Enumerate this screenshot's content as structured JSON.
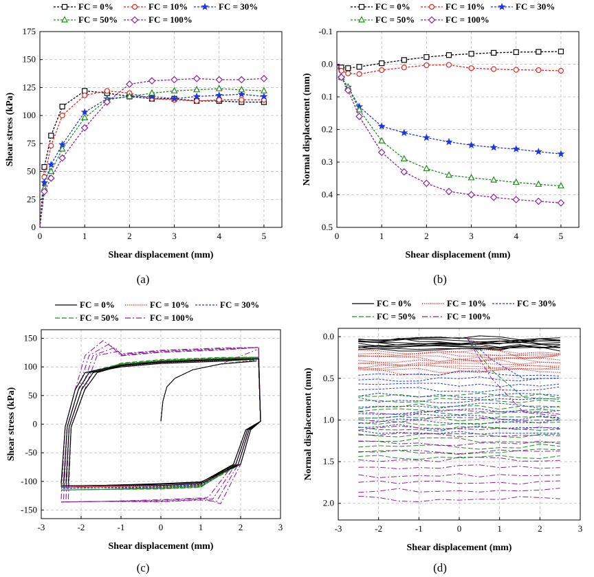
{
  "series_style": [
    {
      "name": "FC = 0%",
      "color": "#000000",
      "marker": "square"
    },
    {
      "name": "FC = 10%",
      "color": "#e8231c",
      "marker": "circle"
    },
    {
      "name": "FC = 30%",
      "color": "#1f35e0",
      "marker": "star"
    },
    {
      "name": "FC = 50%",
      "color": "#1e8a1e",
      "marker": "triangle"
    },
    {
      "name": "FC = 100%",
      "color": "#8b1f9a",
      "marker": "diamond"
    }
  ],
  "chart_data": [
    {
      "id": "a",
      "type": "line",
      "caption": "(a)",
      "title": "",
      "xlabel": "Shear displacement (mm)",
      "ylabel": "Shear stress (kPa)",
      "xlim": [
        0,
        5.4
      ],
      "ylim": [
        0,
        175
      ],
      "xticks": [
        0,
        1,
        2,
        3,
        4,
        5
      ],
      "yticks": [
        0,
        25,
        50,
        75,
        100,
        125,
        150,
        175
      ],
      "grid": true,
      "legend": [
        "FC = 0%",
        "FC = 10%",
        "FC = 30%",
        "FC = 50%",
        "FC = 100%"
      ],
      "x": [
        0,
        0.1,
        0.25,
        0.5,
        1,
        1.5,
        2,
        2.5,
        3,
        3.5,
        4,
        4.5,
        5
      ],
      "series": [
        {
          "name": "FC = 0%",
          "values": [
            0,
            54,
            82,
            108,
            122,
            120,
            117,
            115,
            115,
            113,
            113,
            112,
            112
          ]
        },
        {
          "name": "FC = 10%",
          "values": [
            0,
            45,
            73,
            100,
            118,
            122,
            120,
            115,
            114,
            113,
            114,
            114,
            114
          ]
        },
        {
          "name": "FC = 30%",
          "values": [
            0,
            40,
            56,
            74,
            103,
            115,
            117,
            117,
            115,
            117,
            118,
            119,
            117
          ]
        },
        {
          "name": "FC = 50%",
          "values": [
            0,
            35,
            50,
            70,
            98,
            114,
            117,
            120,
            122,
            123,
            124,
            123,
            122
          ]
        },
        {
          "name": "FC = 100%",
          "values": [
            0,
            32,
            44,
            62,
            89,
            112,
            128,
            131,
            132,
            133,
            132,
            132,
            133
          ]
        }
      ]
    },
    {
      "id": "b",
      "type": "line",
      "caption": "(b)",
      "title": "",
      "xlabel": "Shear displacement (mm)",
      "ylabel": "Normal displacement (mm)",
      "xlim": [
        0,
        5.4
      ],
      "ylim": [
        -0.1,
        0.5
      ],
      "yinverted": true,
      "xticks": [
        0,
        1,
        2,
        3,
        4,
        5
      ],
      "yticks": [
        -0.1,
        0.0,
        0.1,
        0.2,
        0.3,
        0.4,
        0.5
      ],
      "ytick_labels": [
        "-0.1",
        "0.0",
        "0.1",
        "0.2",
        "0.3",
        "0.4",
        "0.5"
      ],
      "grid": true,
      "legend": [
        "FC = 0%",
        "FC = 10%",
        "FC = 30%",
        "FC = 50%",
        "FC = 100%"
      ],
      "x": [
        0,
        0.1,
        0.25,
        0.5,
        1,
        1.5,
        2,
        2.5,
        3,
        3.5,
        4,
        4.5,
        5
      ],
      "series": [
        {
          "name": "FC = 0%",
          "values": [
            0.0,
            0.01,
            0.012,
            0.008,
            -0.003,
            -0.013,
            -0.022,
            -0.028,
            -0.032,
            -0.035,
            -0.037,
            -0.038,
            -0.039
          ]
        },
        {
          "name": "FC = 10%",
          "values": [
            0.0,
            0.02,
            0.028,
            0.03,
            0.018,
            0.01,
            0.003,
            0.002,
            0.012,
            0.015,
            0.017,
            0.018,
            0.02
          ]
        },
        {
          "name": "FC = 30%",
          "values": [
            0.0,
            0.04,
            0.07,
            0.13,
            0.19,
            0.21,
            0.225,
            0.238,
            0.248,
            0.255,
            0.26,
            0.268,
            0.275
          ]
        },
        {
          "name": "FC = 50%",
          "values": [
            0.0,
            0.04,
            0.07,
            0.14,
            0.235,
            0.29,
            0.32,
            0.34,
            0.348,
            0.355,
            0.362,
            0.368,
            0.373
          ]
        },
        {
          "name": "FC = 100%",
          "values": [
            0.0,
            0.04,
            0.08,
            0.16,
            0.27,
            0.33,
            0.365,
            0.39,
            0.4,
            0.408,
            0.415,
            0.42,
            0.425
          ]
        }
      ]
    },
    {
      "id": "c",
      "type": "line",
      "caption": "(c)",
      "title": "",
      "xlabel": "Shear displacement (mm)",
      "ylabel": "Shear stress (kPa)",
      "xlim": [
        -3,
        3
      ],
      "ylim": [
        -165,
        165
      ],
      "xticks": [
        -3,
        -2,
        -1,
        0,
        1,
        2,
        3
      ],
      "yticks": [
        -150,
        -100,
        -50,
        0,
        50,
        100,
        150
      ],
      "grid": true,
      "legend": [
        "FC = 0%",
        "FC = 10%",
        "FC = 30%",
        "FC = 50%",
        "FC = 100%"
      ],
      "series": [
        {
          "name": "FC = 0%",
          "upper_plateau": 112,
          "lower_plateau": -108
        },
        {
          "name": "FC = 10%",
          "upper_plateau": 113,
          "lower_plateau": -110
        },
        {
          "name": "FC = 30%",
          "upper_plateau": 114,
          "lower_plateau": -112
        },
        {
          "name": "FC = 50%",
          "upper_plateau": 115,
          "lower_plateau": -115
        },
        {
          "name": "FC = 100%",
          "upper_plateau": 132,
          "lower_plateau": -136
        }
      ]
    },
    {
      "id": "d",
      "type": "line",
      "caption": "(d)",
      "title": "",
      "xlabel": "Shear displacement (mm)",
      "ylabel": "Normal displacement (mm)",
      "xlim": [
        -3,
        3
      ],
      "ylim": [
        -0.1,
        2.2
      ],
      "yinverted": true,
      "xticks": [
        -3,
        -2,
        -1,
        0,
        1,
        2,
        3
      ],
      "yticks": [
        0.0,
        0.5,
        1.0,
        1.5,
        2.0
      ],
      "ytick_labels": [
        "0.0",
        "0.5",
        "1.0",
        "1.5",
        "2.0"
      ],
      "grid": true,
      "legend": [
        "FC = 0%",
        "FC = 10%",
        "FC = 30%",
        "FC = 50%",
        "FC = 100%"
      ],
      "series": [
        {
          "name": "FC = 0%",
          "band": [
            0.02,
            0.15
          ]
        },
        {
          "name": "FC = 10%",
          "band": [
            0.18,
            0.42
          ]
        },
        {
          "name": "FC = 30%",
          "band": [
            0.45,
            1.15
          ]
        },
        {
          "name": "FC = 50%",
          "band": [
            0.7,
            1.45
          ]
        },
        {
          "name": "FC = 100%",
          "band": [
            0.9,
            1.95
          ]
        }
      ]
    }
  ]
}
